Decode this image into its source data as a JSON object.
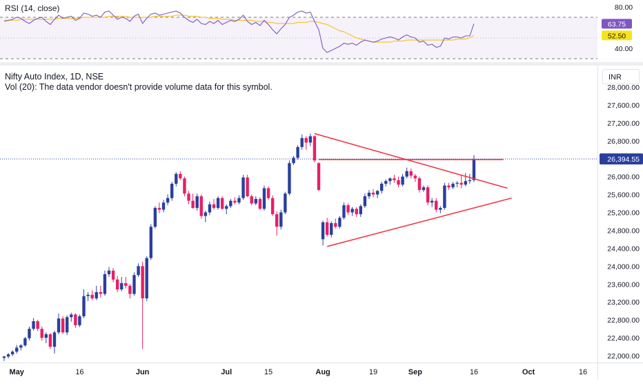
{
  "colors": {
    "up": "#2a3f9c",
    "down": "#e91e63",
    "trend": "#f23645",
    "rsi_line": "#7e57c2",
    "rsi_ma": "#f7c531",
    "last_price_bg": "#2a3f9c",
    "rsi_badge": "#7e57c2",
    "rsi_ma_badge": "#f7e31c"
  },
  "rsi": {
    "title": "RSI (14, close)",
    "axis_ticks": [
      "80.00",
      "40.00"
    ],
    "value_label": "63.75",
    "ma_label": "52.50",
    "upper_band": 70,
    "lower_band": 30
  },
  "header": {
    "symbol": "Nifty Auto Index, 1D, NSE",
    "volume_note": "Vol (20): The data vendor doesn't provide volume data for this symbol.",
    "currency": "INR"
  },
  "price_axis": {
    "ticks": [
      "28,000.00",
      "27,600.00",
      "27,200.00",
      "26,800.00",
      "26,000.00",
      "25,600.00",
      "25,200.00",
      "24,800.00",
      "24,400.00",
      "24,000.00",
      "23,600.00",
      "23,200.00",
      "22,800.00",
      "22,400.00",
      "22,000.00"
    ],
    "last_price_label": "26,394.55",
    "last_price": 26394.55
  },
  "time_axis": {
    "labels": [
      "May",
      "16",
      "Jun",
      "Jul",
      "15",
      "Aug",
      "19",
      "Sep",
      "16",
      "Oct",
      "16"
    ]
  },
  "chart_data": {
    "type": "candlestick",
    "title": "Nifty Auto Index, 1D, NSE",
    "currency": "INR",
    "ylim": [
      21900,
      28100
    ],
    "x_ticks": [
      "May",
      "16",
      "Jun",
      "Jul",
      "15",
      "Aug",
      "19",
      "Sep",
      "16",
      "Oct",
      "16"
    ],
    "last_price": 26394.55,
    "candles": [
      {
        "o": 21950,
        "h": 22000,
        "l": 21880,
        "c": 21980
      },
      {
        "o": 21980,
        "h": 22060,
        "l": 21940,
        "c": 22030
      },
      {
        "o": 22030,
        "h": 22120,
        "l": 21990,
        "c": 22090
      },
      {
        "o": 22090,
        "h": 22240,
        "l": 22050,
        "c": 22180
      },
      {
        "o": 22180,
        "h": 22260,
        "l": 22120,
        "c": 22230
      },
      {
        "o": 22230,
        "h": 22420,
        "l": 22200,
        "c": 22390
      },
      {
        "o": 22390,
        "h": 22650,
        "l": 22340,
        "c": 22600
      },
      {
        "o": 22600,
        "h": 22840,
        "l": 22560,
        "c": 22770
      },
      {
        "o": 22770,
        "h": 22800,
        "l": 22550,
        "c": 22600
      },
      {
        "o": 22600,
        "h": 22650,
        "l": 22330,
        "c": 22400
      },
      {
        "o": 22400,
        "h": 22520,
        "l": 22280,
        "c": 22480
      },
      {
        "o": 22480,
        "h": 22500,
        "l": 22150,
        "c": 22200
      },
      {
        "o": 22200,
        "h": 22560,
        "l": 22050,
        "c": 22520
      },
      {
        "o": 22520,
        "h": 22940,
        "l": 22480,
        "c": 22830
      },
      {
        "o": 22830,
        "h": 22880,
        "l": 22480,
        "c": 22520
      },
      {
        "o": 22520,
        "h": 22900,
        "l": 22460,
        "c": 22860
      },
      {
        "o": 22860,
        "h": 22960,
        "l": 22760,
        "c": 22920
      },
      {
        "o": 22920,
        "h": 22950,
        "l": 22620,
        "c": 22680
      },
      {
        "o": 22680,
        "h": 22920,
        "l": 22640,
        "c": 22880
      },
      {
        "o": 22880,
        "h": 23480,
        "l": 22840,
        "c": 23330
      },
      {
        "o": 23330,
        "h": 23420,
        "l": 23220,
        "c": 23360
      },
      {
        "o": 23360,
        "h": 23460,
        "l": 23240,
        "c": 23280
      },
      {
        "o": 23280,
        "h": 23560,
        "l": 23240,
        "c": 23420
      },
      {
        "o": 23420,
        "h": 23560,
        "l": 23300,
        "c": 23380
      },
      {
        "o": 23380,
        "h": 23900,
        "l": 23340,
        "c": 23820
      },
      {
        "o": 23820,
        "h": 23980,
        "l": 23760,
        "c": 23900
      },
      {
        "o": 23900,
        "h": 23960,
        "l": 23640,
        "c": 23700
      },
      {
        "o": 23700,
        "h": 23780,
        "l": 23420,
        "c": 23480
      },
      {
        "o": 23480,
        "h": 23760,
        "l": 23440,
        "c": 23620
      },
      {
        "o": 23620,
        "h": 23760,
        "l": 23500,
        "c": 23560
      },
      {
        "o": 23560,
        "h": 23600,
        "l": 23280,
        "c": 23380
      },
      {
        "o": 23380,
        "h": 23860,
        "l": 23340,
        "c": 23800
      },
      {
        "o": 23800,
        "h": 24060,
        "l": 23760,
        "c": 24000
      },
      {
        "o": 24000,
        "h": 24100,
        "l": 22150,
        "c": 23280
      },
      {
        "o": 23280,
        "h": 24220,
        "l": 23220,
        "c": 24180
      },
      {
        "o": 24180,
        "h": 24940,
        "l": 24140,
        "c": 24880
      },
      {
        "o": 24880,
        "h": 25340,
        "l": 24840,
        "c": 25300
      },
      {
        "o": 25300,
        "h": 25420,
        "l": 25180,
        "c": 25260
      },
      {
        "o": 25260,
        "h": 25480,
        "l": 25200,
        "c": 25420
      },
      {
        "o": 25420,
        "h": 25600,
        "l": 25360,
        "c": 25520
      },
      {
        "o": 25520,
        "h": 25880,
        "l": 25460,
        "c": 25840
      },
      {
        "o": 25840,
        "h": 26100,
        "l": 25780,
        "c": 26060
      },
      {
        "o": 26060,
        "h": 26120,
        "l": 25920,
        "c": 25960
      },
      {
        "o": 25960,
        "h": 26000,
        "l": 25560,
        "c": 25620
      },
      {
        "o": 25620,
        "h": 25680,
        "l": 25380,
        "c": 25460
      },
      {
        "o": 25460,
        "h": 25620,
        "l": 25280,
        "c": 25300
      },
      {
        "o": 25300,
        "h": 25620,
        "l": 25240,
        "c": 25560
      },
      {
        "o": 25560,
        "h": 25600,
        "l": 25060,
        "c": 25120
      },
      {
        "o": 25120,
        "h": 25240,
        "l": 24980,
        "c": 25200
      },
      {
        "o": 25200,
        "h": 25440,
        "l": 25140,
        "c": 25380
      },
      {
        "o": 25380,
        "h": 25500,
        "l": 25260,
        "c": 25300
      },
      {
        "o": 25300,
        "h": 25560,
        "l": 25260,
        "c": 25520
      },
      {
        "o": 25520,
        "h": 25560,
        "l": 25260,
        "c": 25280
      },
      {
        "o": 25280,
        "h": 25380,
        "l": 25160,
        "c": 25340
      },
      {
        "o": 25340,
        "h": 25500,
        "l": 25300,
        "c": 25460
      },
      {
        "o": 25460,
        "h": 25540,
        "l": 25380,
        "c": 25420
      },
      {
        "o": 25420,
        "h": 25580,
        "l": 25380,
        "c": 25520
      },
      {
        "o": 25520,
        "h": 26040,
        "l": 25480,
        "c": 25980
      },
      {
        "o": 25980,
        "h": 26040,
        "l": 25540,
        "c": 25560
      },
      {
        "o": 25560,
        "h": 25600,
        "l": 25360,
        "c": 25400
      },
      {
        "o": 25400,
        "h": 25560,
        "l": 25360,
        "c": 25500
      },
      {
        "o": 25500,
        "h": 25540,
        "l": 25260,
        "c": 25280
      },
      {
        "o": 25280,
        "h": 25800,
        "l": 25240,
        "c": 25740
      },
      {
        "o": 25740,
        "h": 25780,
        "l": 25480,
        "c": 25520
      },
      {
        "o": 25520,
        "h": 25580,
        "l": 25120,
        "c": 25160
      },
      {
        "o": 25160,
        "h": 25220,
        "l": 24680,
        "c": 24880
      },
      {
        "o": 24880,
        "h": 25260,
        "l": 24820,
        "c": 25200
      },
      {
        "o": 25200,
        "h": 25660,
        "l": 25160,
        "c": 25620
      },
      {
        "o": 25620,
        "h": 26360,
        "l": 25580,
        "c": 26300
      },
      {
        "o": 26300,
        "h": 26460,
        "l": 26260,
        "c": 26420
      },
      {
        "o": 26420,
        "h": 26700,
        "l": 26380,
        "c": 26660
      },
      {
        "o": 26660,
        "h": 26940,
        "l": 26600,
        "c": 26860
      },
      {
        "o": 26860,
        "h": 26900,
        "l": 26600,
        "c": 26760
      },
      {
        "o": 26760,
        "h": 26960,
        "l": 26680,
        "c": 26900
      },
      {
        "o": 26900,
        "h": 26920,
        "l": 26320,
        "c": 26360
      },
      {
        "o": 26300,
        "h": 26320,
        "l": 25680,
        "c": 25700
      },
      {
        "o": 24600,
        "h": 25020,
        "l": 24460,
        "c": 24980
      },
      {
        "o": 24980,
        "h": 25080,
        "l": 24660,
        "c": 24700
      },
      {
        "o": 24700,
        "h": 25000,
        "l": 24640,
        "c": 24960
      },
      {
        "o": 24960,
        "h": 25060,
        "l": 24840,
        "c": 24880
      },
      {
        "o": 24880,
        "h": 25120,
        "l": 24840,
        "c": 25080
      },
      {
        "o": 25080,
        "h": 25420,
        "l": 25040,
        "c": 25360
      },
      {
        "o": 25360,
        "h": 25400,
        "l": 25140,
        "c": 25200
      },
      {
        "o": 25200,
        "h": 25320,
        "l": 25120,
        "c": 25280
      },
      {
        "o": 25280,
        "h": 25320,
        "l": 25100,
        "c": 25160
      },
      {
        "o": 25160,
        "h": 25380,
        "l": 25100,
        "c": 25340
      },
      {
        "o": 25340,
        "h": 25620,
        "l": 25300,
        "c": 25560
      },
      {
        "o": 25560,
        "h": 25700,
        "l": 25500,
        "c": 25640
      },
      {
        "o": 25640,
        "h": 25720,
        "l": 25540,
        "c": 25600
      },
      {
        "o": 25600,
        "h": 25700,
        "l": 25520,
        "c": 25680
      },
      {
        "o": 25680,
        "h": 25880,
        "l": 25620,
        "c": 25840
      },
      {
        "o": 25840,
        "h": 25940,
        "l": 25780,
        "c": 25900
      },
      {
        "o": 25900,
        "h": 25980,
        "l": 25820,
        "c": 25960
      },
      {
        "o": 25960,
        "h": 26040,
        "l": 25860,
        "c": 25920
      },
      {
        "o": 25920,
        "h": 26000,
        "l": 25760,
        "c": 25820
      },
      {
        "o": 25820,
        "h": 26060,
        "l": 25780,
        "c": 26000
      },
      {
        "o": 26000,
        "h": 26200,
        "l": 25960,
        "c": 26120
      },
      {
        "o": 26120,
        "h": 26180,
        "l": 25960,
        "c": 26020
      },
      {
        "o": 26020,
        "h": 26060,
        "l": 25880,
        "c": 25960
      },
      {
        "o": 25960,
        "h": 26000,
        "l": 25640,
        "c": 25700
      },
      {
        "o": 25700,
        "h": 25800,
        "l": 25660,
        "c": 25760
      },
      {
        "o": 25760,
        "h": 25800,
        "l": 25360,
        "c": 25420
      },
      {
        "o": 25420,
        "h": 25520,
        "l": 25320,
        "c": 25460
      },
      {
        "o": 25460,
        "h": 25520,
        "l": 25200,
        "c": 25260
      },
      {
        "o": 25260,
        "h": 25340,
        "l": 25180,
        "c": 25300
      },
      {
        "o": 25300,
        "h": 25860,
        "l": 25260,
        "c": 25800
      },
      {
        "o": 25800,
        "h": 25860,
        "l": 25700,
        "c": 25760
      },
      {
        "o": 25760,
        "h": 25880,
        "l": 25720,
        "c": 25840
      },
      {
        "o": 25840,
        "h": 25900,
        "l": 25760,
        "c": 25860
      },
      {
        "o": 25860,
        "h": 26040,
        "l": 25740,
        "c": 25820
      },
      {
        "o": 25820,
        "h": 26080,
        "l": 25780,
        "c": 25900
      },
      {
        "o": 25900,
        "h": 26060,
        "l": 25840,
        "c": 25920
      },
      {
        "o": 25920,
        "h": 26480,
        "l": 25880,
        "c": 26394.55
      }
    ],
    "rsi_values": [
      66,
      67,
      68,
      70,
      69,
      66,
      64,
      67,
      69,
      70,
      66,
      63,
      68,
      72,
      69,
      70,
      71,
      67,
      69,
      74,
      73,
      71,
      72,
      70,
      75,
      76,
      72,
      68,
      70,
      69,
      66,
      71,
      73,
      64,
      69,
      73,
      74,
      72,
      73,
      74,
      75,
      76,
      74,
      70,
      67,
      65,
      68,
      64,
      63,
      66,
      64,
      67,
      63,
      65,
      67,
      66,
      68,
      72,
      66,
      63,
      65,
      62,
      67,
      63,
      58,
      54,
      59,
      63,
      70,
      72,
      75,
      76,
      74,
      75,
      66,
      58,
      40,
      36,
      38,
      40,
      42,
      45,
      44,
      45,
      43,
      46,
      48,
      47,
      46,
      47,
      49,
      50,
      51,
      50,
      48,
      51,
      53,
      51,
      50,
      46,
      47,
      43,
      44,
      41,
      42,
      50,
      49,
      51,
      51,
      50,
      52,
      52,
      63.75
    ],
    "rsi_ma_values": [
      67,
      67,
      67,
      67,
      68,
      68,
      68,
      68,
      68,
      68,
      68,
      68,
      68,
      69,
      69,
      69,
      69,
      69,
      69,
      70,
      70,
      70,
      70,
      70,
      70,
      71,
      71,
      71,
      71,
      71,
      70,
      70,
      70,
      70,
      70,
      70,
      71,
      71,
      71,
      71,
      71,
      72,
      72,
      72,
      71,
      71,
      71,
      70,
      70,
      69,
      69,
      69,
      68,
      68,
      68,
      67,
      67,
      67,
      67,
      67,
      66,
      66,
      66,
      65,
      65,
      64,
      64,
      64,
      64,
      64,
      65,
      65,
      65,
      66,
      66,
      65,
      64,
      63,
      61,
      59,
      57,
      56,
      54,
      52,
      50,
      49,
      48,
      47,
      46,
      46,
      46,
      46,
      46,
      47,
      47,
      47,
      48,
      48,
      48,
      48,
      48,
      48,
      48,
      48,
      48,
      48,
      48,
      48,
      49,
      49,
      49,
      50,
      52.5
    ],
    "trendlines": [
      {
        "name": "upper-triangle-line",
        "from": {
          "i": 74,
          "price": 26960
        },
        "to": {
          "i": 120,
          "price": 25740
        }
      },
      {
        "name": "lower-triangle-line",
        "from": {
          "i": 77,
          "price": 24440
        },
        "to": {
          "i": 121,
          "price": 25520
        }
      },
      {
        "name": "resistance-line",
        "from": {
          "i": 75,
          "price": 26380
        },
        "to": {
          "i": 119,
          "price": 26380
        }
      }
    ]
  }
}
